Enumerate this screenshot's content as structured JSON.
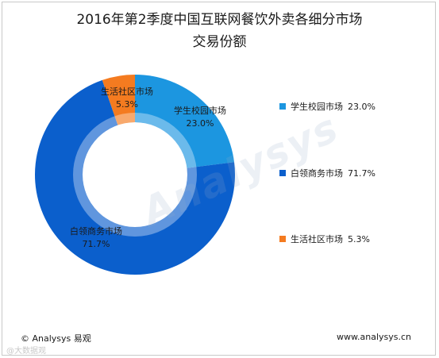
{
  "chart_data": {
    "type": "pie",
    "subtype": "donut",
    "title": "2016年第2季度中国互联网餐饮外卖各细分市场",
    "subtitle": "交易份额",
    "slices": [
      {
        "name": "学生校园市场",
        "value": 23.0,
        "value_label": "23.0%",
        "color": "#1c96e0"
      },
      {
        "name": "白领商务市场",
        "value": 71.7,
        "value_label": "71.7%",
        "color": "#0b5fcc"
      },
      {
        "name": "生活社区市场",
        "value": 5.3,
        "value_label": "5.3%",
        "color": "#f47b20"
      }
    ],
    "legend_position": "right"
  },
  "footer": {
    "copyright": "© Analysys 易观",
    "url": "www.analysys.cn"
  },
  "watermark": {
    "center_text": "Analysys",
    "bottom_text": "@大数据观"
  }
}
